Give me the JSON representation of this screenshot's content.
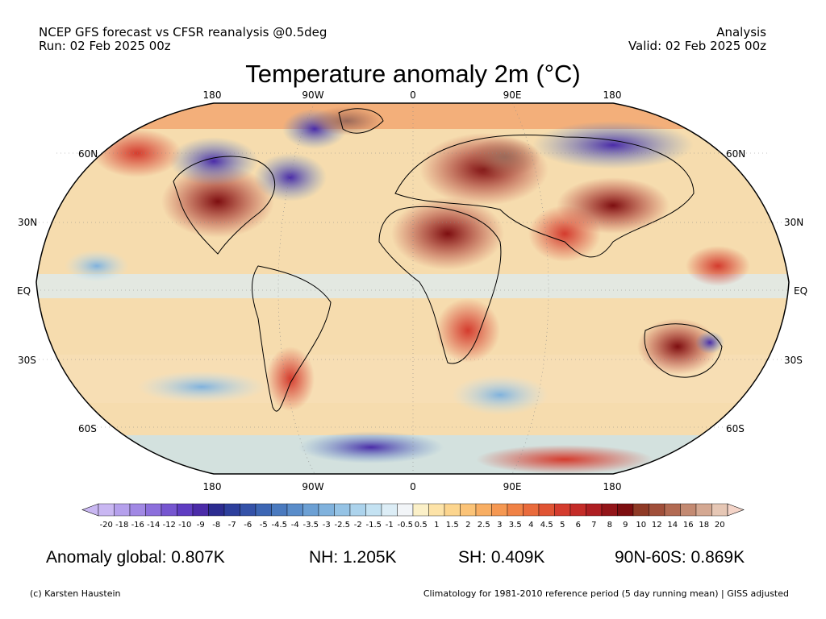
{
  "header": {
    "left_line1": "NCEP GFS forecast vs CFSR reanalysis @0.5deg",
    "left_line2": "Run: 02 Feb 2025 00z",
    "right_line1": "Analysis",
    "right_line2": "Valid: 02 Feb 2025 00z"
  },
  "title": "Temperature anomaly 2m (°C)",
  "map": {
    "projection": "Robinson",
    "lon_labels": [
      "180",
      "90W",
      "0",
      "90E",
      "180"
    ],
    "lat_labels": [
      "60N",
      "30N",
      "EQ",
      "30S",
      "60S"
    ],
    "ocean_color": "#f4d9a8",
    "land_outline": "#000000"
  },
  "colorbar": {
    "ticks": [
      "-20",
      "-18",
      "-16",
      "-14",
      "-12",
      "-10",
      "-9",
      "-8",
      "-7",
      "-6",
      "-5",
      "-4.5",
      "-4",
      "-3.5",
      "-3",
      "-2.5",
      "-2",
      "-1.5",
      "-1",
      "-0.5",
      "0.5",
      "1",
      "1.5",
      "2",
      "2.5",
      "3",
      "3.5",
      "4",
      "4.5",
      "5",
      "6",
      "7",
      "8",
      "9",
      "10",
      "12",
      "14",
      "16",
      "18",
      "20"
    ],
    "colors": [
      "#c9b7f2",
      "#b5a0ec",
      "#a188e4",
      "#8c6fdc",
      "#7656d0",
      "#5f3dc2",
      "#4b2ba8",
      "#2c2c90",
      "#2d3f9c",
      "#3452a8",
      "#3d66b4",
      "#4a7abf",
      "#5a8dca",
      "#6ca0d4",
      "#80b2dd",
      "#95c3e5",
      "#acd3ec",
      "#c4e2f2",
      "#dcedf6",
      "#f2f5f8",
      "#fbf0c8",
      "#fde3a8",
      "#fcd58e",
      "#fbc377",
      "#f8ae63",
      "#f59852",
      "#f08246",
      "#e96b3c",
      "#e05434",
      "#d43c2e",
      "#c42c28",
      "#ae1e22",
      "#931519",
      "#7d0e10",
      "#8f3a26",
      "#a04f3a",
      "#b26a52",
      "#c38a72",
      "#d4a892",
      "#e6c7b5"
    ],
    "endcap_low": "#c9b7f2",
    "endcap_high": "#f4d4c8"
  },
  "stats": {
    "global": "Anomaly global: 0.807K",
    "nh": "NH: 1.205K",
    "sh": "SH: 0.409K",
    "arctic": "90N-60S: 0.869K"
  },
  "footer": {
    "left": "(c) Karsten Haustein",
    "right": "Climatology for 1981-2010 reference period (5 day running mean) | GISS adjusted"
  }
}
